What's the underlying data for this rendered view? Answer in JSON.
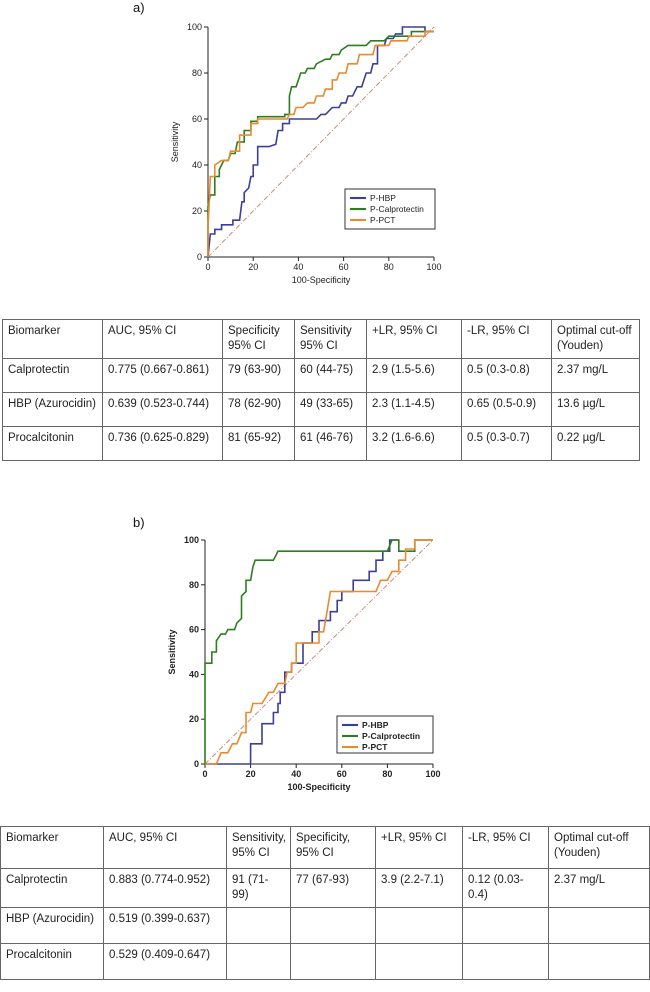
{
  "panel_a": {
    "label": "a)",
    "chart_data": {
      "type": "line",
      "title": "",
      "xlabel": "100-Specificity",
      "ylabel": "Sensitivity",
      "xlim": [
        0,
        100
      ],
      "ylim": [
        0,
        100
      ],
      "xticks": [
        0,
        20,
        40,
        60,
        80,
        100
      ],
      "yticks": [
        0,
        20,
        40,
        60,
        80,
        100
      ],
      "reference_line": [
        [
          0,
          0
        ],
        [
          100,
          100
        ]
      ],
      "legend_position": "lower-right",
      "series": [
        {
          "name": "P-HBP",
          "color": "#3b3f9a",
          "points": [
            [
              0,
              0
            ],
            [
              1,
              10
            ],
            [
              3,
              10
            ],
            [
              3,
              12
            ],
            [
              6,
              12
            ],
            [
              6,
              14
            ],
            [
              11,
              14
            ],
            [
              11,
              16
            ],
            [
              14,
              16
            ],
            [
              15,
              24
            ],
            [
              16,
              24
            ],
            [
              16,
              28
            ],
            [
              18,
              30
            ],
            [
              19,
              35
            ],
            [
              20,
              35
            ],
            [
              20,
              40
            ],
            [
              22,
              40
            ],
            [
              22,
              48
            ],
            [
              27,
              48
            ],
            [
              30,
              49
            ],
            [
              31,
              55
            ],
            [
              33,
              55
            ],
            [
              33,
              58
            ],
            [
              36,
              58
            ],
            [
              36,
              60
            ],
            [
              44,
              60
            ],
            [
              44,
              60
            ],
            [
              48,
              60
            ],
            [
              50,
              62
            ],
            [
              52,
              62
            ],
            [
              55,
              65
            ],
            [
              58,
              65
            ],
            [
              59,
              67
            ],
            [
              61,
              67
            ],
            [
              62,
              70
            ],
            [
              64,
              70
            ],
            [
              66,
              74
            ],
            [
              68,
              74
            ],
            [
              70,
              80
            ],
            [
              72,
              80
            ],
            [
              73,
              84
            ],
            [
              75,
              84
            ],
            [
              75,
              92
            ],
            [
              78,
              92
            ],
            [
              79,
              95
            ],
            [
              82,
              95
            ],
            [
              83,
              97
            ],
            [
              86,
              97
            ],
            [
              86,
              100
            ],
            [
              96,
              100
            ],
            [
              96,
              98
            ],
            [
              100,
              98
            ]
          ]
        },
        {
          "name": "P-Calprotectin",
          "color": "#2e7d1f",
          "points": [
            [
              0,
              0
            ],
            [
              0,
              22
            ],
            [
              1,
              27
            ],
            [
              3,
              27
            ],
            [
              3,
              35
            ],
            [
              5,
              35
            ],
            [
              5,
              38
            ],
            [
              7,
              42
            ],
            [
              9,
              42
            ],
            [
              10,
              45
            ],
            [
              12,
              45
            ],
            [
              13,
              50
            ],
            [
              16,
              50
            ],
            [
              16,
              55
            ],
            [
              19,
              55
            ],
            [
              19,
              59
            ],
            [
              22,
              59
            ],
            [
              22,
              61
            ],
            [
              34,
              61
            ],
            [
              34,
              62
            ],
            [
              36,
              62
            ],
            [
              36,
              70
            ],
            [
              37,
              74
            ],
            [
              39,
              74
            ],
            [
              41,
              80
            ],
            [
              43,
              80
            ],
            [
              44,
              82
            ],
            [
              47,
              82
            ],
            [
              48,
              84
            ],
            [
              52,
              86
            ],
            [
              54,
              86
            ],
            [
              55,
              88
            ],
            [
              58,
              88
            ],
            [
              59,
              90
            ],
            [
              62,
              92
            ],
            [
              70,
              92
            ],
            [
              72,
              94
            ],
            [
              78,
              94
            ],
            [
              80,
              96
            ],
            [
              90,
              96
            ],
            [
              90,
              98
            ],
            [
              100,
              98
            ]
          ]
        },
        {
          "name": "P-PCT",
          "color": "#e98a2e",
          "points": [
            [
              0,
              0
            ],
            [
              0,
              12
            ],
            [
              1,
              35
            ],
            [
              3,
              35
            ],
            [
              3,
              40
            ],
            [
              6,
              42
            ],
            [
              9,
              42
            ],
            [
              10,
              46
            ],
            [
              14,
              46
            ],
            [
              14,
              53
            ],
            [
              19,
              53
            ],
            [
              19,
              58
            ],
            [
              22,
              58
            ],
            [
              22,
              60
            ],
            [
              35,
              60
            ],
            [
              36,
              62
            ],
            [
              38,
              62
            ],
            [
              39,
              65
            ],
            [
              42,
              65
            ],
            [
              44,
              67
            ],
            [
              47,
              67
            ],
            [
              48,
              70
            ],
            [
              51,
              70
            ],
            [
              52,
              73
            ],
            [
              55,
              73
            ],
            [
              55,
              77
            ],
            [
              57,
              77
            ],
            [
              58,
              80
            ],
            [
              61,
              80
            ],
            [
              62,
              84
            ],
            [
              66,
              84
            ],
            [
              67,
              88
            ],
            [
              73,
              88
            ],
            [
              74,
              92
            ],
            [
              80,
              92
            ],
            [
              81,
              94
            ],
            [
              88,
              94
            ],
            [
              89,
              96
            ],
            [
              96,
              96
            ],
            [
              96,
              98
            ],
            [
              100,
              98
            ]
          ]
        }
      ]
    },
    "table": {
      "header": [
        "Biomarker",
        "AUC, 95% CI",
        "Specificity\n95% CI",
        "Sensitivity\n95% CI",
        "+LR, 95% CI",
        "-LR, 95% CI",
        "Optimal cut-off\n(Youden)"
      ],
      "rows": [
        [
          "Calprotectin",
          "0.775 (0.667-0.861)",
          "79 (63-90)",
          "60 (44-75)",
          "2.9 (1.5-5.6)",
          "0.5 (0.3-0.8)",
          "2.37 mg/L"
        ],
        [
          "HBP (Azurocidin)",
          "0.639 (0.523-0.744)",
          "78 (62-90)",
          "49 (33-65)",
          "2.3 (1.1-4.5)",
          "0.65 (0.5-0.9)",
          "13.6 µg/L"
        ],
        [
          "Procalcitonin",
          "0.736 (0.625-0.829)",
          "81 (65-92)",
          "61 (46-76)",
          "3.2 (1.6-6.6)",
          "0.5 (0.3-0.7)",
          "0.22 µg/L"
        ]
      ]
    }
  },
  "panel_b": {
    "label": "b)",
    "chart_data": {
      "type": "line",
      "title": "",
      "xlabel": "100-Specificity",
      "ylabel": "Sensitivity",
      "xlim": [
        0,
        100
      ],
      "ylim": [
        0,
        100
      ],
      "xticks": [
        0,
        20,
        40,
        60,
        80,
        100
      ],
      "yticks": [
        0,
        20,
        40,
        60,
        80,
        100
      ],
      "reference_line": [
        [
          0,
          0
        ],
        [
          100,
          100
        ]
      ],
      "legend_position": "lower-right",
      "series": [
        {
          "name": "P-HBP",
          "color": "#3b3f9a",
          "points": [
            [
              0,
              0
            ],
            [
              20,
              0
            ],
            [
              20,
              9
            ],
            [
              25,
              9
            ],
            [
              25,
              18
            ],
            [
              30,
              18
            ],
            [
              30,
              23
            ],
            [
              32,
              23
            ],
            [
              32,
              27
            ],
            [
              33,
              27
            ],
            [
              33,
              32
            ],
            [
              35,
              32
            ],
            [
              35,
              41
            ],
            [
              38,
              41
            ],
            [
              38,
              45
            ],
            [
              43,
              45
            ],
            [
              43,
              54
            ],
            [
              47,
              54
            ],
            [
              47,
              59
            ],
            [
              50,
              59
            ],
            [
              50,
              64
            ],
            [
              55,
              64
            ],
            [
              55,
              68
            ],
            [
              58,
              68
            ],
            [
              58,
              73
            ],
            [
              60,
              73
            ],
            [
              60,
              77
            ],
            [
              65,
              77
            ],
            [
              65,
              82
            ],
            [
              72,
              82
            ],
            [
              72,
              86
            ],
            [
              75,
              86
            ],
            [
              75,
              91
            ],
            [
              78,
              91
            ],
            [
              78,
              95
            ],
            [
              81,
              95
            ],
            [
              81,
              100
            ],
            [
              85,
              100
            ]
          ]
        },
        {
          "name": "P-Calprotectin",
          "color": "#2e7d1f",
          "points": [
            [
              0,
              0
            ],
            [
              0,
              45
            ],
            [
              3,
              45
            ],
            [
              3,
              50
            ],
            [
              5,
              50
            ],
            [
              5,
              55
            ],
            [
              7,
              58
            ],
            [
              9,
              58
            ],
            [
              10,
              60
            ],
            [
              13,
              60
            ],
            [
              14,
              63
            ],
            [
              16,
              65
            ],
            [
              16,
              75
            ],
            [
              18,
              77
            ],
            [
              18,
              82
            ],
            [
              20,
              82
            ],
            [
              21,
              88
            ],
            [
              22,
              91
            ],
            [
              30,
              91
            ],
            [
              32,
              95
            ],
            [
              80,
              95
            ],
            [
              82,
              100
            ],
            [
              85,
              100
            ],
            [
              85,
              95
            ],
            [
              92,
              95
            ],
            [
              92,
              100
            ],
            [
              100,
              100
            ]
          ]
        },
        {
          "name": "P-PCT",
          "color": "#e98a2e",
          "points": [
            [
              0,
              0
            ],
            [
              5,
              0
            ],
            [
              7,
              5
            ],
            [
              10,
              5
            ],
            [
              12,
              9
            ],
            [
              14,
              9
            ],
            [
              16,
              14
            ],
            [
              18,
              14
            ],
            [
              18,
              23
            ],
            [
              20,
              23
            ],
            [
              21,
              27
            ],
            [
              25,
              27
            ],
            [
              28,
              32
            ],
            [
              30,
              32
            ],
            [
              32,
              36
            ],
            [
              35,
              36
            ],
            [
              36,
              41
            ],
            [
              38,
              41
            ],
            [
              38,
              45
            ],
            [
              40,
              45
            ],
            [
              40,
              54
            ],
            [
              50,
              54
            ],
            [
              50,
              59
            ],
            [
              52,
              59
            ],
            [
              55,
              77
            ],
            [
              60,
              77
            ],
            [
              75,
              77
            ],
            [
              77,
              82
            ],
            [
              80,
              82
            ],
            [
              82,
              86
            ],
            [
              85,
              86
            ],
            [
              85,
              91
            ],
            [
              88,
              91
            ],
            [
              88,
              96
            ],
            [
              92,
              96
            ],
            [
              92,
              100
            ],
            [
              100,
              100
            ]
          ]
        }
      ]
    },
    "table": {
      "header": [
        "Biomarker",
        "AUC, 95% CI",
        "Sensitivity,\n95% CI",
        "Specificity,\n95% CI",
        "+LR, 95% CI",
        "-LR, 95% CI",
        "Optimal cut-off\n(Youden)"
      ],
      "rows": [
        [
          "Calprotectin",
          "0.883 (0.774-0.952)",
          "91 (71-99)",
          "77 (67-93)",
          "3.9 (2.2-7.1)",
          "0.12 (0.03-0.4)",
          "2.37 mg/L"
        ],
        [
          "HBP (Azurocidin)",
          "0.519 (0.399-0.637)",
          "",
          "",
          "",
          "",
          ""
        ],
        [
          "Procalcitonin",
          "0.529 (0.409-0.647)",
          "",
          "",
          "",
          "",
          ""
        ]
      ]
    }
  }
}
